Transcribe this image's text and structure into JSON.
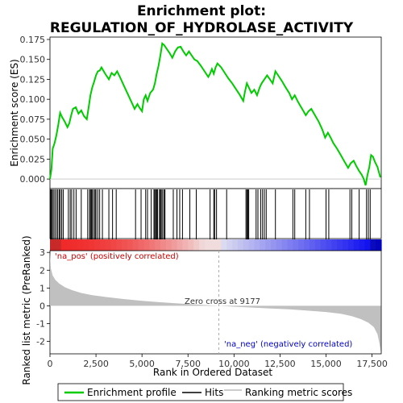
{
  "title_line1": "Enrichment plot:",
  "title_line2": "REGULATION_OF_HYDROLASE_ACTIVITY",
  "top_panel": {
    "ylabel": "Enrichment score (ES)",
    "yticks": [
      "0.000",
      "0.025",
      "0.050",
      "0.075",
      "0.100",
      "0.125",
      "0.150",
      "0.175"
    ]
  },
  "bottom_panel": {
    "ylabel": "Ranked list metric (PreRanked)",
    "xlabel": "Rank in Ordered Dataset",
    "yticks": [
      "3",
      "2",
      "1",
      "0",
      "-1",
      "-2"
    ],
    "xticks": [
      "0",
      "2,500",
      "5,000",
      "7,500",
      "10,000",
      "12,500",
      "15,000",
      "17,500"
    ],
    "pos_label": "'na_pos' (positively correlated)",
    "neg_label": "'na_neg' (negatively correlated)",
    "zero_cross_label": "Zero cross at 9177"
  },
  "legend": {
    "items": [
      {
        "label": "Enrichment profile",
        "color": "#00cc00"
      },
      {
        "label": "Hits",
        "color": "#000000"
      },
      {
        "label": "Ranking metric scores",
        "color": "#bbbbbb"
      }
    ]
  },
  "colors": {
    "es_line": "#00cc00",
    "metric_fill": "#c0c0c0",
    "pos": "#cc0000",
    "neg": "#0000cc"
  },
  "chart_data": {
    "type": "line",
    "x_range": [
      0,
      18000
    ],
    "es_ylim": [
      -0.012,
      0.178
    ],
    "metric_ylim": [
      -2.7,
      3.1
    ],
    "zero_cross": 9177,
    "es_profile": {
      "x": [
        0,
        80,
        150,
        250,
        350,
        450,
        550,
        650,
        800,
        950,
        1050,
        1150,
        1250,
        1400,
        1550,
        1700,
        1850,
        2000,
        2100,
        2200,
        2300,
        2400,
        2500,
        2600,
        2700,
        2800,
        3000,
        3200,
        3350,
        3500,
        3650,
        3800,
        4000,
        4200,
        4400,
        4600,
        4750,
        4850,
        5000,
        5100,
        5200,
        5300,
        5450,
        5600,
        5700,
        5800,
        5900,
        6000,
        6100,
        6200,
        6350,
        6500,
        6650,
        6800,
        6950,
        7100,
        7250,
        7400,
        7550,
        7700,
        7850,
        8000,
        8200,
        8400,
        8600,
        8700,
        8800,
        8900,
        9000,
        9100,
        9300,
        9500,
        9700,
        9900,
        10100,
        10300,
        10500,
        10600,
        10700,
        10800,
        10950,
        11100,
        11250,
        11400,
        11500,
        11650,
        11800,
        11950,
        12100,
        12250,
        12400,
        12600,
        12800,
        13000,
        13150,
        13300,
        13450,
        13600,
        13750,
        13900,
        14050,
        14200,
        14400,
        14600,
        14800,
        14950,
        15100,
        15250,
        15400,
        15600,
        15800,
        16000,
        16200,
        16350,
        16500,
        16650,
        16800,
        16950,
        17050,
        17150,
        17250,
        17350,
        17450,
        17550,
        17650,
        17800,
        17950
      ],
      "y": [
        0.0,
        0.012,
        0.038,
        0.045,
        0.055,
        0.068,
        0.083,
        0.078,
        0.072,
        0.065,
        0.07,
        0.08,
        0.088,
        0.09,
        0.082,
        0.086,
        0.079,
        0.075,
        0.09,
        0.105,
        0.115,
        0.122,
        0.13,
        0.135,
        0.136,
        0.14,
        0.132,
        0.125,
        0.133,
        0.13,
        0.135,
        0.128,
        0.118,
        0.108,
        0.098,
        0.088,
        0.094,
        0.09,
        0.085,
        0.1,
        0.105,
        0.098,
        0.108,
        0.112,
        0.12,
        0.132,
        0.142,
        0.155,
        0.17,
        0.168,
        0.163,
        0.158,
        0.152,
        0.16,
        0.165,
        0.166,
        0.16,
        0.155,
        0.16,
        0.155,
        0.15,
        0.148,
        0.142,
        0.135,
        0.128,
        0.132,
        0.138,
        0.132,
        0.14,
        0.145,
        0.14,
        0.133,
        0.126,
        0.12,
        0.113,
        0.106,
        0.098,
        0.11,
        0.12,
        0.115,
        0.108,
        0.112,
        0.105,
        0.115,
        0.12,
        0.125,
        0.13,
        0.125,
        0.12,
        0.135,
        0.13,
        0.123,
        0.115,
        0.108,
        0.1,
        0.105,
        0.098,
        0.092,
        0.086,
        0.08,
        0.085,
        0.088,
        0.08,
        0.072,
        0.062,
        0.052,
        0.058,
        0.052,
        0.045,
        0.038,
        0.03,
        0.022,
        0.014,
        0.02,
        0.023,
        0.016,
        0.01,
        0.005,
        0.0,
        -0.008,
        0.005,
        0.015,
        0.03,
        0.028,
        0.022,
        0.015,
        0.002
      ]
    },
    "hits": [
      30,
      70,
      120,
      180,
      260,
      340,
      420,
      500,
      560,
      640,
      720,
      1000,
      1100,
      1180,
      1300,
      1420,
      1700,
      2050,
      2150,
      2200,
      2250,
      2300,
      2380,
      2450,
      2500,
      2600,
      2700,
      2850,
      3200,
      3400,
      3600,
      4650,
      4950,
      5200,
      5300,
      5500,
      5650,
      5700,
      5750,
      5800,
      5850,
      5950,
      6000,
      6050,
      6120,
      6200,
      6250,
      6700,
      6900,
      7050,
      7200,
      7600,
      7950,
      8700,
      8900,
      8950,
      9050,
      9600,
      10650,
      10700,
      10750,
      10800,
      11200,
      11300,
      11450,
      11550,
      11650,
      11750,
      12250,
      13200,
      13300,
      13900,
      14100,
      15000,
      15150,
      16300,
      16400,
      16800,
      17200,
      17300,
      17400
    ],
    "metric": {
      "x": [
        0,
        50,
        150,
        300,
        500,
        800,
        1200,
        1700,
        2300,
        3000,
        4000,
        5000,
        6000,
        7000,
        8000,
        9177,
        10000,
        11000,
        12000,
        13000,
        14000,
        15000,
        15800,
        16400,
        16900,
        17300,
        17600,
        17800,
        17900,
        17980
      ],
      "y": [
        3.0,
        2.1,
        1.7,
        1.45,
        1.25,
        1.05,
        0.88,
        0.72,
        0.6,
        0.5,
        0.38,
        0.28,
        0.2,
        0.13,
        0.07,
        0.0,
        -0.05,
        -0.1,
        -0.15,
        -0.2,
        -0.27,
        -0.35,
        -0.45,
        -0.58,
        -0.75,
        -0.95,
        -1.2,
        -1.6,
        -2.1,
        -2.6
      ]
    }
  }
}
